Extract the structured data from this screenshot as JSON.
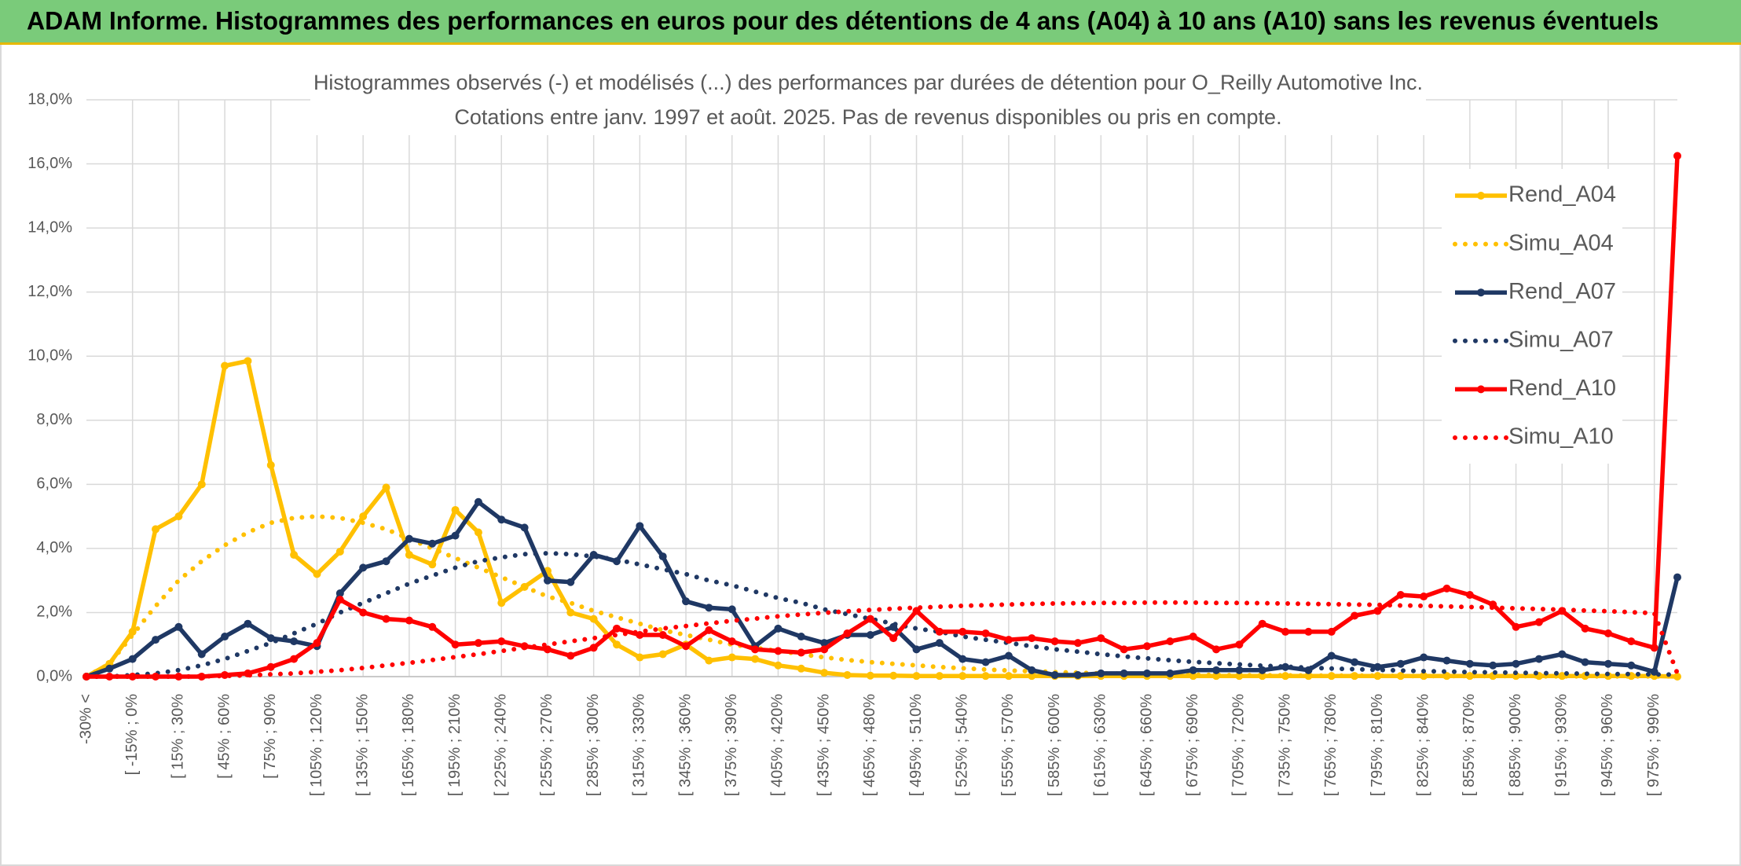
{
  "header": "ADAM Informe. Histogrammes des performances en euros pour des détentions de 4 ans (A04) à 10 ans (A10) sans les revenus éventuels",
  "chart_data": {
    "type": "line",
    "title": "Histogrammes observés (-) et modélisés (...) des performances par durées de détention pour O_Reilly Automotive Inc.",
    "subtitle": "Cotations entre janv. 1997 et août. 2025. Pas de revenus disponibles ou pris en compte.",
    "categories": [
      "-30% <",
      null,
      "[ -15% ; 0%",
      null,
      "[ 15% ; 30%",
      null,
      "[ 45% ; 60%",
      null,
      "[ 75% ; 90%",
      null,
      "[ 105% ; 120%",
      null,
      "[ 135% ; 150%",
      null,
      "[ 165% ; 180%",
      null,
      "[ 195% ; 210%",
      null,
      "[ 225% ; 240%",
      null,
      "[ 255% ; 270%",
      null,
      "[ 285% ; 300%",
      null,
      "[ 315% ; 330%",
      null,
      "[ 345% ; 360%",
      null,
      "[ 375% ; 390%",
      null,
      "[ 405% ; 420%",
      null,
      "[ 435% ; 450%",
      null,
      "[ 465% ; 480%",
      null,
      "[ 495% ; 510%",
      null,
      "[ 525% ; 540%",
      null,
      "[ 555% ; 570%",
      null,
      "[ 585% ; 600%",
      null,
      "[ 615% ; 630%",
      null,
      "[ 645% ; 660%",
      null,
      "[ 675% ; 690%",
      null,
      "[ 705% ; 720%",
      null,
      "[ 735% ; 750%",
      null,
      "[ 765% ; 780%",
      null,
      "[ 795% ; 810%",
      null,
      "[ 825% ; 840%",
      null,
      "[ 855% ; 870%",
      null,
      "[ 885% ; 900%",
      null,
      "[ 915% ; 930%",
      null,
      "[ 945% ; 960%",
      null,
      "[ 975% ; 990%",
      null
    ],
    "series": [
      {
        "name": "Rend_A04",
        "color": "#FFC000",
        "line_style": "solid",
        "values": [
          0,
          0.4,
          1.4,
          4.6,
          5.0,
          6.0,
          9.7,
          9.85,
          6.6,
          3.8,
          3.2,
          3.9,
          5.0,
          5.9,
          3.8,
          3.5,
          5.2,
          4.5,
          2.3,
          2.8,
          3.3,
          2.0,
          1.8,
          1.0,
          0.6,
          0.7,
          1.0,
          0.5,
          0.6,
          0.55,
          0.35,
          0.25,
          0.12,
          0.05,
          0.03,
          0.03,
          0.02,
          0.02,
          0.02,
          0.02,
          0.02,
          0.02,
          0.02,
          0.02,
          0.02,
          0.02,
          0.02,
          0.02,
          0.02,
          0.02,
          0.02,
          0.02,
          0.02,
          0.02,
          0.02,
          0.02,
          0.02,
          0.02,
          0.02,
          0.02,
          0.02,
          0.02,
          0.02,
          0.02,
          0.02,
          0.02,
          0.02,
          0.02,
          0.02,
          0
        ]
      },
      {
        "name": "Simu_A04",
        "color": "#FFC000",
        "line_style": "dotted",
        "values": [
          0,
          0.4,
          1.3,
          2.2,
          3.0,
          3.6,
          4.1,
          4.5,
          4.8,
          4.95,
          5.0,
          4.95,
          4.8,
          4.6,
          4.3,
          4.0,
          3.7,
          3.4,
          3.1,
          2.8,
          2.5,
          2.3,
          2.05,
          1.85,
          1.65,
          1.45,
          1.3,
          1.15,
          1.0,
          0.9,
          0.8,
          0.7,
          0.6,
          0.52,
          0.45,
          0.4,
          0.35,
          0.3,
          0.26,
          0.22,
          0.19,
          0.17,
          0.14,
          0.12,
          0.1,
          0.09,
          0.08,
          0.07,
          0.06,
          0.05,
          0.04,
          0.04,
          0.04,
          0.03,
          0.03,
          0.03,
          0.03,
          0.02,
          0.02,
          0.02,
          0.02,
          0.02,
          0.02,
          0.01,
          0.01,
          0.01,
          0.01,
          0.01,
          0.01,
          0.01
        ]
      },
      {
        "name": "Rend_A07",
        "color": "#1F3864",
        "line_style": "solid",
        "values": [
          0,
          0.25,
          0.55,
          1.15,
          1.55,
          0.7,
          1.25,
          1.65,
          1.2,
          1.1,
          0.95,
          2.6,
          3.4,
          3.6,
          4.3,
          4.15,
          4.4,
          5.45,
          4.9,
          4.65,
          3.0,
          2.95,
          3.8,
          3.6,
          4.7,
          3.75,
          2.35,
          2.15,
          2.1,
          0.95,
          1.5,
          1.25,
          1.05,
          1.3,
          1.3,
          1.55,
          0.85,
          1.05,
          0.55,
          0.45,
          0.65,
          0.2,
          0.05,
          0.05,
          0.1,
          0.1,
          0.1,
          0.1,
          0.2,
          0.2,
          0.2,
          0.2,
          0.3,
          0.2,
          0.65,
          0.45,
          0.3,
          0.4,
          0.6,
          0.5,
          0.4,
          0.35,
          0.4,
          0.55,
          0.7,
          0.45,
          0.4,
          0.35,
          0.15,
          3.1
        ]
      },
      {
        "name": "Simu_A07",
        "color": "#1F3864",
        "line_style": "dotted",
        "values": [
          0,
          0,
          0.05,
          0.1,
          0.2,
          0.35,
          0.55,
          0.8,
          1.05,
          1.35,
          1.65,
          2.0,
          2.3,
          2.6,
          2.9,
          3.15,
          3.4,
          3.6,
          3.72,
          3.82,
          3.85,
          3.82,
          3.75,
          3.65,
          3.5,
          3.35,
          3.2,
          3.0,
          2.85,
          2.65,
          2.45,
          2.3,
          2.1,
          1.95,
          1.8,
          1.65,
          1.5,
          1.4,
          1.25,
          1.15,
          1.05,
          0.95,
          0.85,
          0.78,
          0.7,
          0.63,
          0.57,
          0.51,
          0.46,
          0.42,
          0.38,
          0.34,
          0.31,
          0.28,
          0.25,
          0.23,
          0.21,
          0.19,
          0.17,
          0.16,
          0.14,
          0.13,
          0.12,
          0.11,
          0.1,
          0.09,
          0.08,
          0.08,
          0.07,
          0.06
        ]
      },
      {
        "name": "Rend_A10",
        "color": "#FF0000",
        "line_style": "solid",
        "values": [
          0,
          0,
          0,
          0,
          0,
          0,
          0.05,
          0.1,
          0.3,
          0.55,
          1.05,
          2.4,
          2.0,
          1.8,
          1.75,
          1.55,
          1.0,
          1.05,
          1.1,
          0.95,
          0.85,
          0.65,
          0.9,
          1.5,
          1.3,
          1.3,
          0.95,
          1.45,
          1.1,
          0.85,
          0.8,
          0.75,
          0.85,
          1.35,
          1.8,
          1.2,
          2.05,
          1.4,
          1.4,
          1.35,
          1.15,
          1.2,
          1.1,
          1.05,
          1.2,
          0.85,
          0.95,
          1.1,
          1.25,
          0.85,
          1.0,
          1.65,
          1.4,
          1.4,
          1.4,
          1.9,
          2.05,
          2.55,
          2.5,
          2.75,
          2.55,
          2.25,
          1.55,
          1.7,
          2.05,
          1.5,
          1.35,
          1.1,
          0.9,
          16.25
        ]
      },
      {
        "name": "Simu_A10",
        "color": "#FF0000",
        "line_style": "dotted",
        "values": [
          0,
          0,
          0,
          0,
          0,
          0.01,
          0.02,
          0.04,
          0.07,
          0.1,
          0.15,
          0.2,
          0.27,
          0.35,
          0.43,
          0.52,
          0.61,
          0.7,
          0.8,
          0.9,
          1.0,
          1.1,
          1.2,
          1.3,
          1.4,
          1.5,
          1.58,
          1.66,
          1.74,
          1.81,
          1.88,
          1.94,
          1.99,
          2.04,
          2.08,
          2.12,
          2.15,
          2.18,
          2.21,
          2.23,
          2.25,
          2.27,
          2.28,
          2.29,
          2.3,
          2.3,
          2.31,
          2.31,
          2.31,
          2.3,
          2.3,
          2.29,
          2.28,
          2.27,
          2.26,
          2.25,
          2.24,
          2.22,
          2.21,
          2.19,
          2.17,
          2.15,
          2.13,
          2.11,
          2.09,
          2.06,
          2.04,
          2.01,
          1.98,
          0.1
        ]
      }
    ],
    "ylim": [
      0,
      18
    ],
    "yticks": [
      {
        "value": 0,
        "label": "0,0%"
      },
      {
        "value": 2,
        "label": "2,0%"
      },
      {
        "value": 4,
        "label": "4,0%"
      },
      {
        "value": 6,
        "label": "6,0%"
      },
      {
        "value": 8,
        "label": "8,0%"
      },
      {
        "value": 10,
        "label": "10,0%"
      },
      {
        "value": 12,
        "label": "12,0%"
      },
      {
        "value": 14,
        "label": "14,0%"
      },
      {
        "value": 16,
        "label": "16,0%"
      },
      {
        "value": 18,
        "label": "18,0%"
      }
    ],
    "grid": true,
    "legend": "right"
  }
}
